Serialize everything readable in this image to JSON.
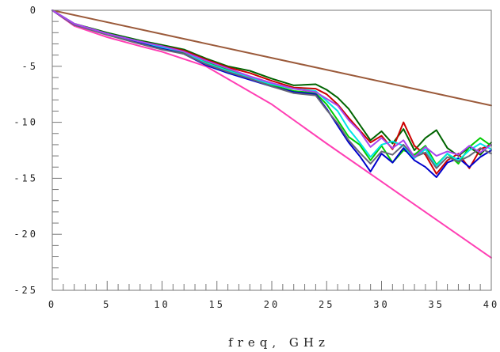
{
  "chart_data": {
    "type": "line",
    "title": "",
    "xlabel": "freq, GHz",
    "ylabel": "",
    "xlim": [
      0,
      40
    ],
    "ylim": [
      -25,
      0
    ],
    "x_ticks": [
      0,
      5,
      10,
      15,
      20,
      25,
      30,
      35,
      40
    ],
    "x_tick_labels": [
      "0",
      "5",
      "10",
      "15",
      "20",
      "25",
      "30",
      "35",
      "40"
    ],
    "y_ticks": [
      0,
      -5,
      -10,
      -15,
      -20,
      -25
    ],
    "y_tick_labels": [
      "0",
      "-5",
      "-10",
      "-15",
      "-20",
      "-25"
    ],
    "grid": false,
    "legend": "none",
    "series": [
      {
        "color": "#9B5A3A",
        "x": [
          0,
          40
        ],
        "y": [
          0,
          -8.5
        ]
      },
      {
        "color": "#FF3FB4",
        "x": [
          0,
          2,
          5,
          8,
          10,
          14,
          20,
          25,
          30,
          35,
          40
        ],
        "y": [
          0,
          -1.4,
          -2.4,
          -3.2,
          -3.7,
          -5.0,
          -8.4,
          -11.9,
          -15.3,
          -18.7,
          -22.1
        ]
      },
      {
        "color": "#006400",
        "x": [
          0,
          2,
          5,
          8,
          10,
          12,
          14,
          16,
          18,
          20,
          22,
          24,
          25,
          26,
          27,
          28,
          29,
          30,
          31,
          32,
          33,
          34,
          35,
          36,
          37,
          38,
          39,
          40
        ],
        "y": [
          0,
          -1.2,
          -2.0,
          -2.7,
          -3.1,
          -3.5,
          -4.3,
          -5.0,
          -5.4,
          -6.1,
          -6.7,
          -6.6,
          -7.1,
          -7.8,
          -8.8,
          -10.2,
          -11.6,
          -10.8,
          -11.9,
          -10.6,
          -12.5,
          -11.4,
          -10.7,
          -12.3,
          -13.0,
          -12.2,
          -12.9,
          -11.8
        ]
      },
      {
        "color": "#CC0000",
        "x": [
          0,
          2,
          5,
          8,
          10,
          12,
          14,
          16,
          18,
          20,
          22,
          24,
          25,
          26,
          27,
          28,
          29,
          30,
          31,
          32,
          33,
          34,
          35,
          36,
          37,
          38,
          39,
          40
        ],
        "y": [
          0,
          -1.2,
          -2.1,
          -2.8,
          -3.2,
          -3.6,
          -4.4,
          -5.1,
          -5.6,
          -6.3,
          -6.9,
          -7.0,
          -7.5,
          -8.4,
          -9.6,
          -10.7,
          -11.8,
          -11.2,
          -12.4,
          -10.0,
          -12.1,
          -12.9,
          -14.6,
          -13.4,
          -12.8,
          -14.1,
          -12.4,
          -12.0
        ]
      },
      {
        "color": "#00CC00",
        "x": [
          0,
          2,
          5,
          8,
          10,
          12,
          14,
          16,
          18,
          20,
          22,
          24,
          25,
          26,
          27,
          28,
          29,
          30,
          31,
          32,
          33,
          34,
          35,
          36,
          37,
          38,
          39,
          40
        ],
        "y": [
          0,
          -1.3,
          -2.1,
          -2.8,
          -3.3,
          -3.8,
          -4.6,
          -5.3,
          -6.0,
          -6.7,
          -7.2,
          -7.4,
          -8.4,
          -9.8,
          -11.3,
          -12.0,
          -13.4,
          -12.1,
          -13.6,
          -12.5,
          -12.9,
          -12.1,
          -13.8,
          -12.8,
          -13.7,
          -12.2,
          -11.4,
          -12.1
        ]
      },
      {
        "color": "#0000CC",
        "x": [
          0,
          2,
          5,
          8,
          10,
          12,
          14,
          16,
          18,
          20,
          22,
          24,
          25,
          26,
          27,
          28,
          29,
          30,
          31,
          32,
          33,
          34,
          35,
          36,
          37,
          38,
          39,
          40
        ],
        "y": [
          0,
          -1.3,
          -2.1,
          -2.9,
          -3.4,
          -3.9,
          -4.9,
          -5.6,
          -6.2,
          -6.8,
          -7.3,
          -7.5,
          -8.8,
          -10.3,
          -11.8,
          -13.0,
          -14.4,
          -12.8,
          -13.6,
          -12.3,
          -13.4,
          -14.0,
          -14.9,
          -13.6,
          -13.2,
          -14.0,
          -13.1,
          -12.5
        ]
      },
      {
        "color": "#00E5E5",
        "x": [
          0,
          2,
          5,
          8,
          10,
          12,
          14,
          16,
          18,
          20,
          22,
          24,
          25,
          26,
          27,
          28,
          29,
          30,
          31,
          32,
          33,
          34,
          35,
          36,
          37,
          38,
          39,
          40
        ],
        "y": [
          0,
          -1.2,
          -2.1,
          -2.8,
          -3.3,
          -3.7,
          -4.7,
          -5.4,
          -6.0,
          -6.6,
          -7.0,
          -7.2,
          -8.1,
          -9.0,
          -10.6,
          -11.8,
          -13.1,
          -12.0,
          -11.7,
          -12.1,
          -13.2,
          -12.4,
          -13.9,
          -12.8,
          -13.4,
          -12.5,
          -11.9,
          -12.4
        ]
      },
      {
        "color": "#666677",
        "x": [
          0,
          2,
          5,
          8,
          10,
          12,
          14,
          16,
          18,
          20,
          22,
          24,
          25,
          26,
          27,
          28,
          29,
          30,
          31,
          32,
          33,
          34,
          35,
          36,
          37,
          38,
          39,
          40
        ],
        "y": [
          0,
          -1.3,
          -2.2,
          -3.0,
          -3.5,
          -3.9,
          -4.8,
          -5.5,
          -6.1,
          -6.8,
          -7.4,
          -7.6,
          -8.9,
          -10.1,
          -11.6,
          -12.7,
          -13.7,
          -12.6,
          -12.9,
          -12.0,
          -13.1,
          -12.7,
          -14.1,
          -13.1,
          -13.5,
          -13.0,
          -12.3,
          -12.8
        ]
      },
      {
        "color": "#AA44EE",
        "x": [
          0,
          2,
          5,
          8,
          10,
          12,
          14,
          16,
          18,
          20,
          22,
          24,
          25,
          26,
          27,
          28,
          29,
          30,
          31,
          32,
          33,
          34,
          35,
          36,
          37,
          38,
          39,
          40
        ],
        "y": [
          0,
          -1.2,
          -2.1,
          -2.8,
          -3.2,
          -3.7,
          -4.5,
          -5.2,
          -5.9,
          -6.5,
          -7.0,
          -7.3,
          -7.9,
          -8.5,
          -9.8,
          -10.8,
          -12.2,
          -11.4,
          -12.3,
          -11.6,
          -13.1,
          -12.2,
          -13.0,
          -12.6,
          -12.9,
          -12.1,
          -12.7,
          -12.0
        ]
      }
    ]
  }
}
